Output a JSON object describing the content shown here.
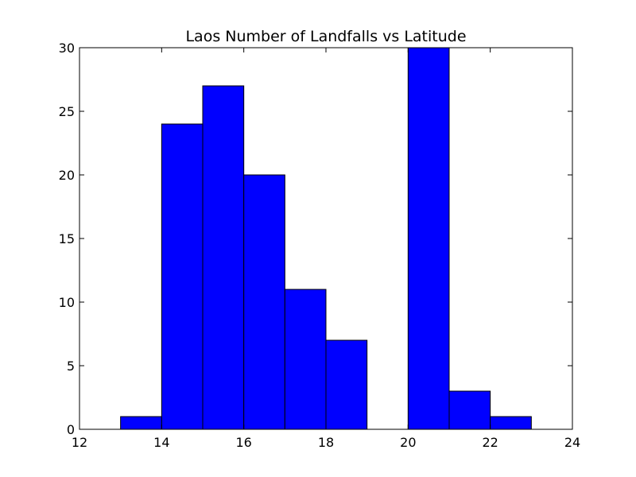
{
  "chart_data": {
    "type": "bar",
    "title": "Laos Number of Landfalls vs Latitude",
    "xlabel": "",
    "ylabel": "",
    "xlim": [
      12,
      24
    ],
    "ylim": [
      0,
      30
    ],
    "x_ticks": [
      12,
      14,
      16,
      18,
      20,
      22,
      24
    ],
    "y_ticks": [
      0,
      5,
      10,
      15,
      20,
      25,
      30
    ],
    "grid": false,
    "bins": [
      {
        "x_start": 12,
        "x_end": 13,
        "value": 0
      },
      {
        "x_start": 13,
        "x_end": 14,
        "value": 1
      },
      {
        "x_start": 14,
        "x_end": 15,
        "value": 24
      },
      {
        "x_start": 15,
        "x_end": 16,
        "value": 27
      },
      {
        "x_start": 16,
        "x_end": 17,
        "value": 20
      },
      {
        "x_start": 17,
        "x_end": 18,
        "value": 11
      },
      {
        "x_start": 18,
        "x_end": 19,
        "value": 7
      },
      {
        "x_start": 19,
        "x_end": 20,
        "value": 0
      },
      {
        "x_start": 20,
        "x_end": 21,
        "value": 30
      },
      {
        "x_start": 21,
        "x_end": 22,
        "value": 3
      },
      {
        "x_start": 22,
        "x_end": 23,
        "value": 1
      }
    ],
    "colors": {
      "bar_fill": "#0000ff",
      "bar_edge": "#000000",
      "axes": "#000000",
      "background": "#ffffff"
    }
  }
}
